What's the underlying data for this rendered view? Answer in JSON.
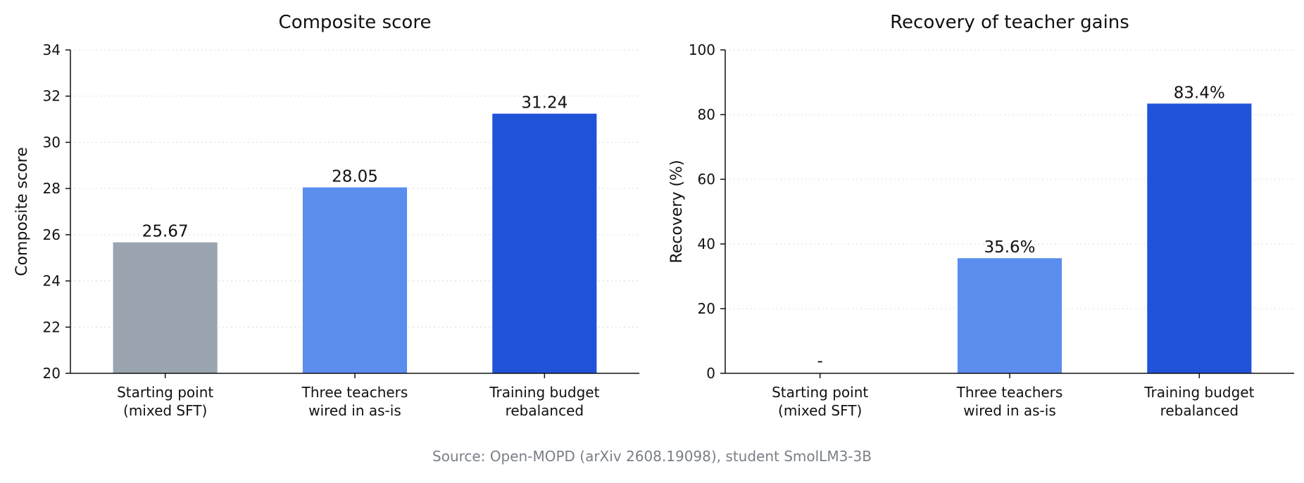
{
  "chart_data": [
    {
      "type": "bar",
      "title": "Composite score",
      "xlabel": "",
      "ylabel": "Composite score",
      "ylim": [
        20,
        34
      ],
      "yticks": [
        20,
        22,
        24,
        26,
        28,
        30,
        32,
        34
      ],
      "grid": "horizontal dotted",
      "categories": [
        [
          "Starting point",
          "(mixed SFT)"
        ],
        [
          "Three teachers",
          "wired in as-is"
        ],
        [
          "Training budget",
          "rebalanced"
        ]
      ],
      "values": [
        25.67,
        28.05,
        31.24
      ],
      "data_labels": [
        "25.67",
        "28.05",
        "31.24"
      ],
      "colors": [
        "#9aa5b1",
        "#5b8def",
        "#2153d9"
      ]
    },
    {
      "type": "bar",
      "title": "Recovery of teacher gains",
      "xlabel": "",
      "ylabel": "Recovery (%)",
      "ylim": [
        0,
        100
      ],
      "yticks": [
        0,
        20,
        40,
        60,
        80,
        100
      ],
      "grid": "horizontal dotted",
      "categories": [
        [
          "Starting point",
          "(mixed SFT)"
        ],
        [
          "Three teachers",
          "wired in as-is"
        ],
        [
          "Training budget",
          "rebalanced"
        ]
      ],
      "values": [
        null,
        35.6,
        83.4
      ],
      "data_labels": [
        "-",
        "35.6%",
        "83.4%"
      ],
      "colors": [
        "#9aa5b1",
        "#5b8def",
        "#2153d9"
      ]
    }
  ],
  "source": "Source: Open-MOPD (arXiv 2608.19098), student SmolLM3-3B"
}
